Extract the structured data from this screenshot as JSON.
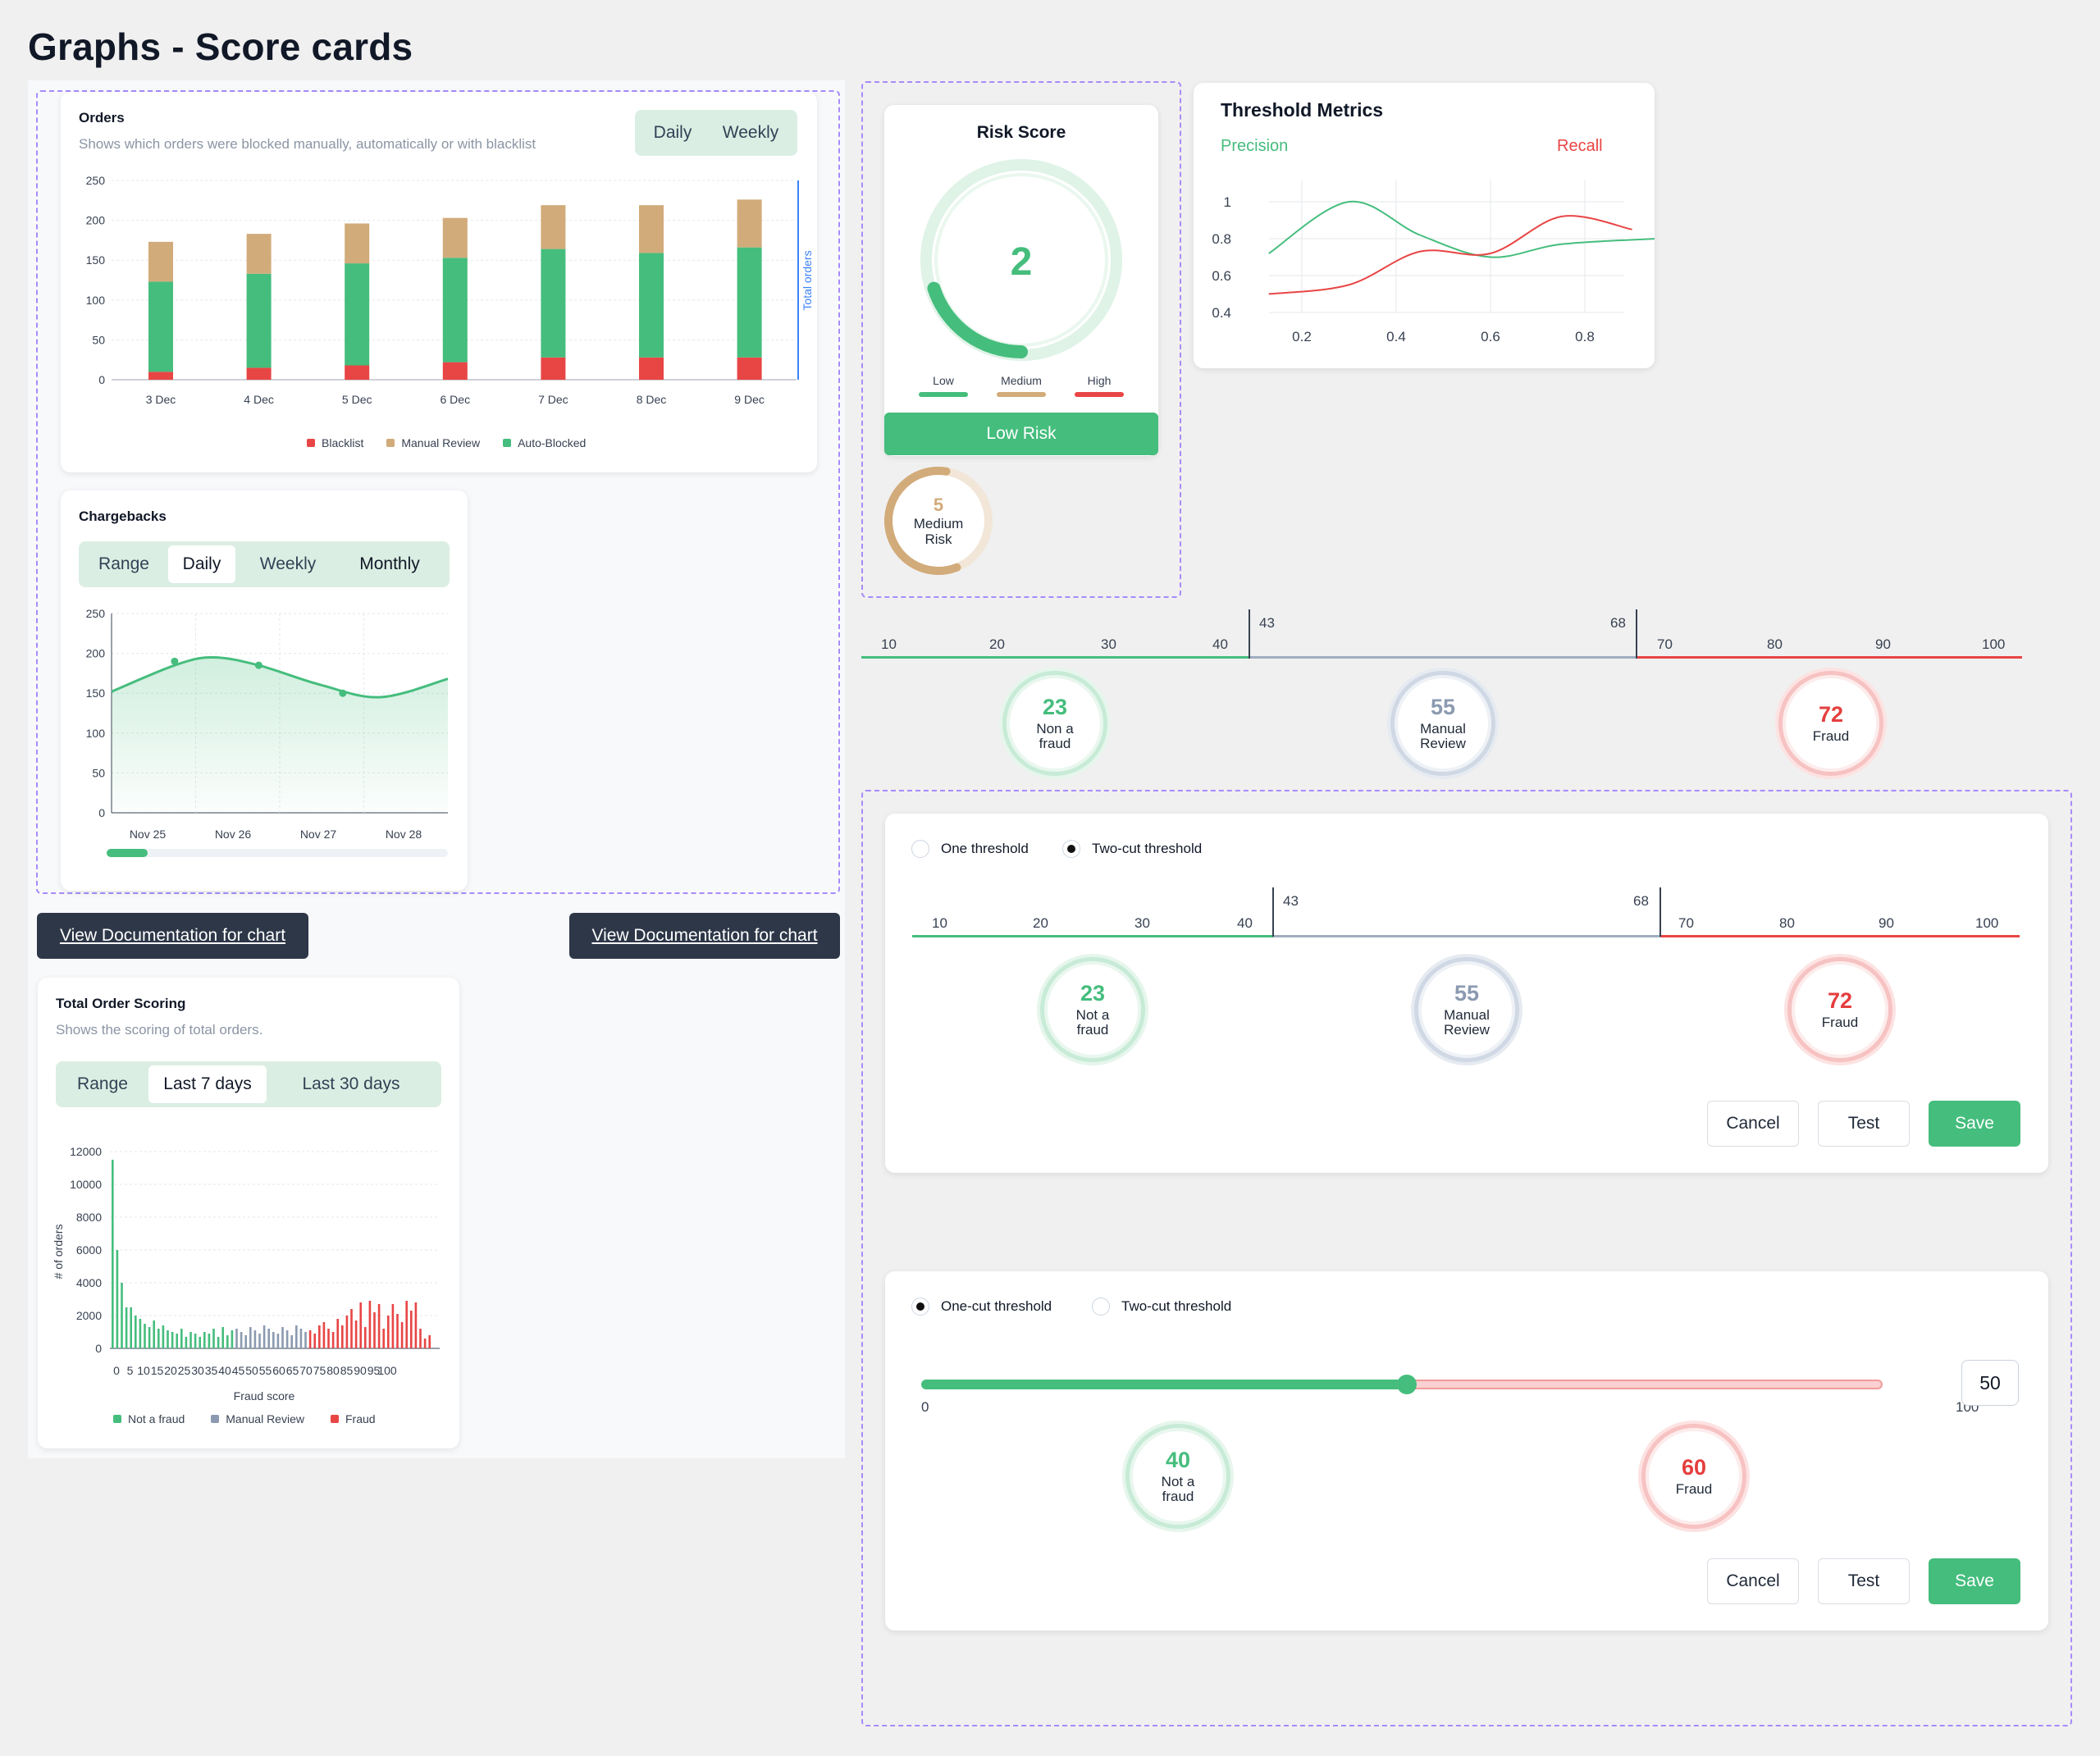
{
  "page": {
    "title": "Graphs - Score cards"
  },
  "orders": {
    "title": "Orders",
    "subtitle": "Shows which orders were blocked manually, automatically or with blacklist",
    "toggle": [
      "Daily",
      "Weekly"
    ],
    "right_axis_label": "Total orders"
  },
  "chargebacks": {
    "title": "Chargebacks",
    "tabs": [
      "Range",
      "Daily",
      "Weekly",
      "Monthly"
    ],
    "selected_tab": "Daily"
  },
  "docs": {
    "left": "View Documentation for chart",
    "right": "View Documentation for chart"
  },
  "total_scoring": {
    "title": "Total Order Scoring",
    "subtitle": "Shows the scoring of total orders.",
    "tabs": [
      "Range",
      "Last 7 days",
      "Last 30 days"
    ],
    "selected_tab": "Last 7 days"
  },
  "risk_score": {
    "title": "Risk Score",
    "value": "2",
    "legend": [
      "Low",
      "Medium",
      "High"
    ],
    "button": "Low Risk",
    "mini_value": "5",
    "mini_label_1": "Medium",
    "mini_label_2": "Risk",
    "gauge_fraction": 0.2
  },
  "threshold_metrics": {
    "title": "Threshold Metrics",
    "precision": "Precision",
    "recall": "Recall"
  },
  "scale_top": {
    "ticks": [
      "10",
      "20",
      "30",
      "40",
      "70",
      "80",
      "90",
      "100"
    ],
    "cut1": "43",
    "cut2": "68",
    "cards": [
      {
        "value": "23",
        "label1": "Non a",
        "label2": "fraud"
      },
      {
        "value": "55",
        "label1": "Manual",
        "label2": "Review"
      },
      {
        "value": "72",
        "label1": "Fraud",
        "label2": ""
      }
    ]
  },
  "two_cut": {
    "radio1": "One threshold",
    "radio2": "Two-cut threshold",
    "ticks": [
      "10",
      "20",
      "30",
      "40",
      "70",
      "80",
      "90",
      "100"
    ],
    "cut1": "43",
    "cut2": "68",
    "cards": [
      {
        "value": "23",
        "label1": "Not a",
        "label2": "fraud"
      },
      {
        "value": "55",
        "label1": "Manual",
        "label2": "Review"
      },
      {
        "value": "72",
        "label1": "Fraud",
        "label2": ""
      }
    ],
    "cancel": "Cancel",
    "test": "Test",
    "save": "Save"
  },
  "one_cut": {
    "radio1": "One-cut threshold",
    "radio2": "Two-cut threshold",
    "min": "0",
    "max": "100",
    "value": "50",
    "cards": [
      {
        "value": "40",
        "label1": "Not a",
        "label2": "fraud"
      },
      {
        "value": "60",
        "label1": "Fraud",
        "label2": ""
      }
    ],
    "cancel": "Cancel",
    "test": "Test",
    "save": "Save"
  },
  "colors": {
    "green": "#45bd7d",
    "tan": "#d2ab7a",
    "red": "#e84545",
    "slate": "#8b9ab0"
  },
  "chart_data": [
    {
      "type": "bar",
      "title": "Orders",
      "categories": [
        "3 Dec",
        "4 Dec",
        "5 Dec",
        "6 Dec",
        "7 Dec",
        "8 Dec",
        "9 Dec"
      ],
      "series": [
        {
          "name": "Blacklist",
          "values": [
            10,
            15,
            18,
            22,
            28,
            28,
            28
          ]
        },
        {
          "name": "Manual Review",
          "values": [
            50,
            50,
            50,
            50,
            55,
            60,
            60
          ]
        },
        {
          "name": "Auto-Blocked",
          "values": [
            113,
            118,
            128,
            131,
            136,
            131,
            138
          ]
        }
      ],
      "stacked": true,
      "ylim": [
        0,
        250
      ],
      "yticks": [
        0,
        50,
        100,
        150,
        200,
        250
      ],
      "ylabel_right": "Total orders"
    },
    {
      "type": "area",
      "title": "Chargebacks",
      "categories": [
        "Nov 25",
        "Nov 26",
        "Nov 27",
        "Nov 28"
      ],
      "x": [
        0,
        0.75,
        1.2,
        1.75,
        2.5,
        3.2,
        4.0
      ],
      "values": [
        152,
        185,
        195,
        185,
        160,
        145,
        168
      ],
      "markers": [
        [
          0.75,
          190
        ],
        [
          1.75,
          185
        ],
        [
          2.75,
          150
        ]
      ],
      "ylim": [
        0,
        250
      ],
      "yticks": [
        0,
        50,
        100,
        150,
        200,
        250
      ]
    },
    {
      "type": "bar",
      "title": "Total Order Scoring",
      "xlabel": "Fraud score",
      "ylabel": "# of orders",
      "xticks": [
        "0",
        "5",
        "10",
        "15",
        "20",
        "25",
        "30",
        "35",
        "40",
        "45",
        "50",
        "55",
        "60",
        "65",
        "70",
        "75",
        "80",
        "85",
        "90",
        "95",
        "100"
      ],
      "ylim": [
        0,
        12000
      ],
      "yticks": [
        0,
        2000,
        4000,
        6000,
        8000,
        10000,
        12000
      ],
      "series": [
        {
          "name": "Not a fraud",
          "values": [
            11500,
            6000,
            4000,
            2500,
            2500,
            2000,
            1800,
            1500,
            1300,
            1700,
            1200,
            1400,
            1100,
            1000,
            900,
            1200,
            700,
            1000,
            900,
            700,
            1000,
            900,
            1200,
            700,
            1300,
            800,
            1100
          ]
        },
        {
          "name": "Manual Review",
          "values": [
            1200,
            1000,
            800,
            1300,
            1100,
            900,
            1400,
            1200,
            1000,
            900,
            1300,
            1100,
            800,
            1400,
            1200,
            1000
          ]
        },
        {
          "name": "Fraud",
          "values": [
            1100,
            900,
            1400,
            1600,
            1200,
            1000,
            1800,
            1400,
            2000,
            2400,
            1700,
            2800,
            1300,
            2900,
            2200,
            2700,
            1200,
            2000,
            2700,
            2100,
            1600,
            2900,
            2300,
            2800,
            1200,
            600,
            800
          ]
        }
      ]
    },
    {
      "type": "line",
      "title": "Threshold Metrics",
      "xticks": [
        0.2,
        0.4,
        0.6,
        0.8
      ],
      "yticks": [
        0.4,
        0.6,
        0.8,
        1
      ],
      "series": [
        {
          "name": "Precision",
          "x": [
            0.13,
            0.3,
            0.45,
            0.6,
            0.75,
            0.95
          ],
          "values": [
            0.72,
            1.0,
            0.82,
            0.7,
            0.77,
            0.8
          ]
        },
        {
          "name": "Recall",
          "x": [
            0.13,
            0.3,
            0.45,
            0.6,
            0.75,
            0.9
          ],
          "values": [
            0.5,
            0.55,
            0.73,
            0.72,
            0.92,
            0.85
          ]
        }
      ]
    }
  ]
}
